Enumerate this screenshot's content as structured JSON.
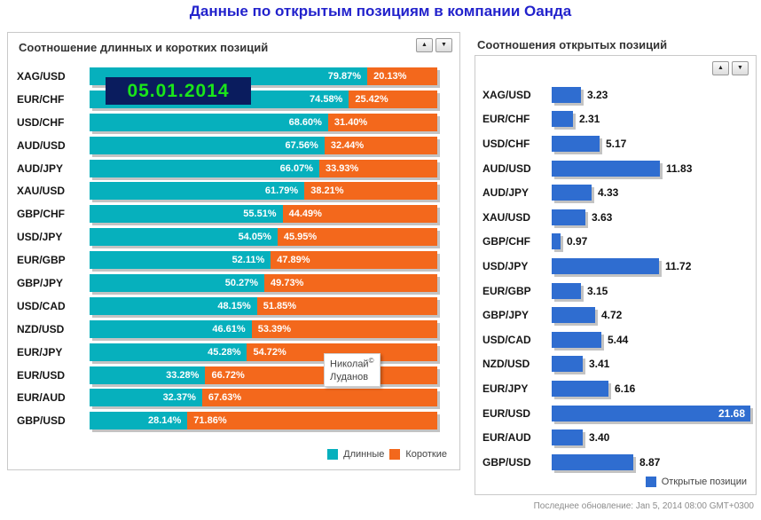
{
  "page_title": "Данные по открытым позициям в компании Оанда",
  "icons": {
    "sort_asc": "▲",
    "sort_desc": "▼"
  },
  "left_panel": {
    "date": "05.01.2014",
    "watermark": {
      "line1": "Николай",
      "symbol": "©",
      "line2": "Луданов"
    }
  },
  "footer": {
    "last_update": "Последнее обновление: Jan 5, 2014 08:00 GMT+0300"
  },
  "colors": {
    "page_title": "#2222cc",
    "long": "#06b0bd",
    "short": "#f3681c",
    "open_positions": "#2f6dd0",
    "date_text": "#1ae51a",
    "date_background": "#0a1c5e",
    "bar_shadow": "#919191"
  },
  "chart_data": [
    {
      "type": "bar",
      "subtype": "horizontal-stacked",
      "title": "Соотношение длинных и коротких позиций",
      "value_format": "percent",
      "legend_position": "bottom-right",
      "categories": [
        "XAG/USD",
        "EUR/CHF",
        "USD/CHF",
        "AUD/USD",
        "AUD/JPY",
        "XAU/USD",
        "GBP/CHF",
        "USD/JPY",
        "EUR/GBP",
        "GBP/JPY",
        "USD/CAD",
        "NZD/USD",
        "EUR/JPY",
        "EUR/USD",
        "EUR/AUD",
        "GBP/USD"
      ],
      "series": [
        {
          "name": "Длинные",
          "color": "#06b0bd",
          "values": [
            79.87,
            74.58,
            68.6,
            67.56,
            66.07,
            61.79,
            55.51,
            54.05,
            52.11,
            50.27,
            48.15,
            46.61,
            45.28,
            33.28,
            32.37,
            28.14
          ]
        },
        {
          "name": "Короткие",
          "color": "#f3681c",
          "values": [
            20.13,
            25.42,
            31.4,
            32.44,
            33.93,
            38.21,
            44.49,
            45.95,
            47.89,
            49.73,
            51.85,
            53.39,
            54.72,
            66.72,
            67.63,
            71.86
          ]
        }
      ],
      "xlim": [
        0,
        100
      ]
    },
    {
      "type": "bar",
      "subtype": "horizontal",
      "title": "Соотношения открытых позиций",
      "legend_position": "bottom-right",
      "categories": [
        "XAG/USD",
        "EUR/CHF",
        "USD/CHF",
        "AUD/USD",
        "AUD/JPY",
        "XAU/USD",
        "GBP/CHF",
        "USD/JPY",
        "EUR/GBP",
        "GBP/JPY",
        "USD/CAD",
        "NZD/USD",
        "EUR/JPY",
        "EUR/USD",
        "EUR/AUD",
        "GBP/USD"
      ],
      "series": [
        {
          "name": "Открытые позиции",
          "color": "#2f6dd0",
          "values": [
            3.23,
            2.31,
            5.17,
            11.83,
            4.33,
            3.63,
            0.97,
            11.72,
            3.15,
            4.72,
            5.44,
            3.41,
            6.16,
            21.68,
            3.4,
            8.87
          ]
        }
      ],
      "xlim": [
        0,
        22
      ]
    }
  ]
}
